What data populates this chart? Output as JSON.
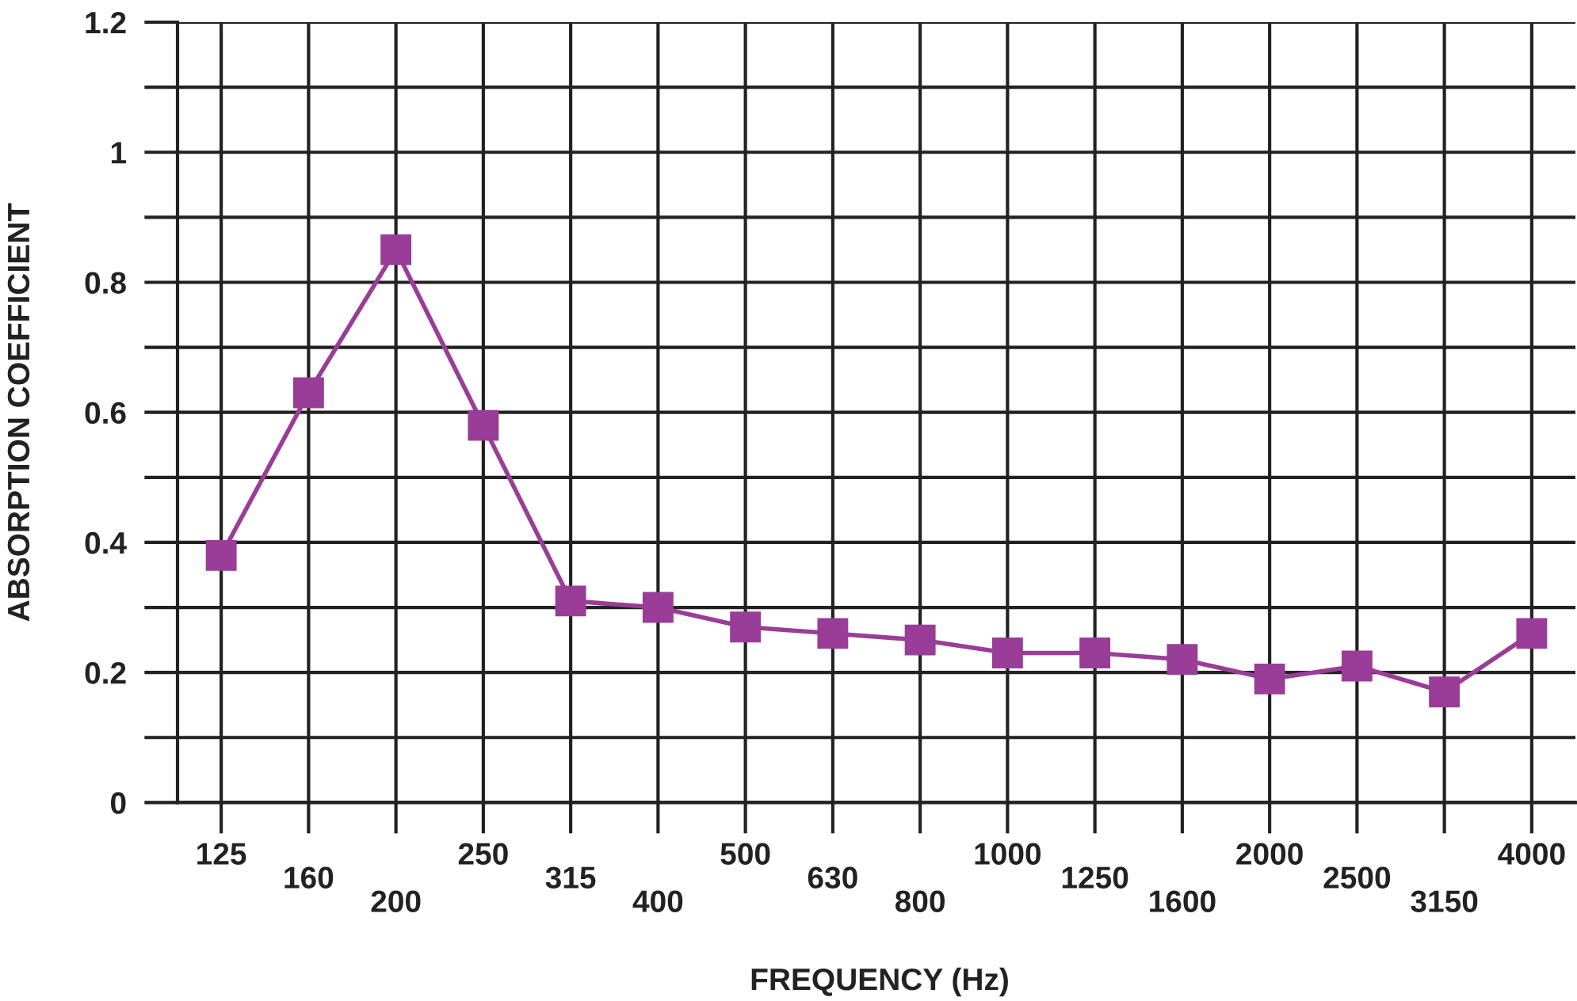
{
  "chart_data": {
    "type": "line",
    "xlabel": "FREQUENCY (Hz)",
    "ylabel": "ABSORPTION COEFFICIENT",
    "categories": [
      "125",
      "160",
      "200",
      "250",
      "315",
      "400",
      "500",
      "630",
      "800",
      "1000",
      "1250",
      "1600",
      "2000",
      "2500",
      "3150",
      "4000"
    ],
    "series": [
      {
        "color": "#993d98",
        "values": [
          0.38,
          0.63,
          0.85,
          0.58,
          0.31,
          0.3,
          0.27,
          0.26,
          0.25,
          0.23,
          0.23,
          0.22,
          0.19,
          0.21,
          0.17,
          0.26
        ]
      }
    ],
    "ylim": [
      0,
      1.2
    ],
    "yticks": [
      0,
      {
        "value": 0.1,
        "label": null
      },
      0.2,
      {
        "value": 0.3,
        "label": null
      },
      0.4,
      {
        "value": 0.5,
        "label": null
      },
      0.6,
      {
        "value": 0.7,
        "label": null
      },
      0.8,
      {
        "value": 0.9,
        "label": null
      },
      1,
      {
        "value": 1.1,
        "label": null
      },
      1.2
    ],
    "grid": true,
    "marker": "square",
    "line_style": "solid",
    "legend": false
  }
}
